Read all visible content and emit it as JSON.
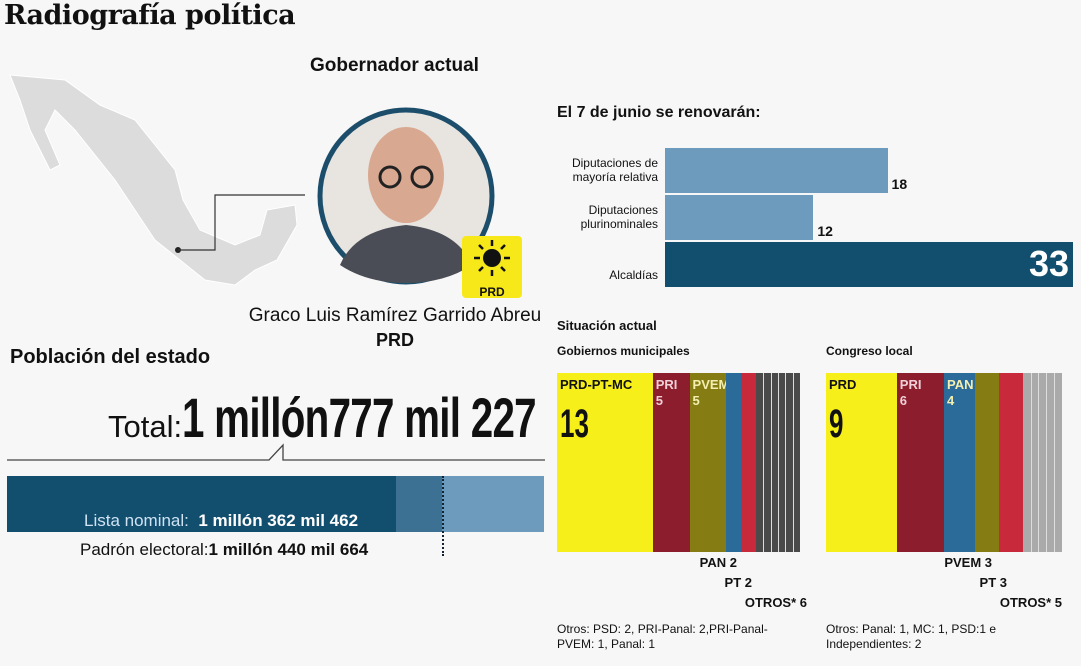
{
  "title": "Radiografía política",
  "governor": {
    "heading": "Gobernador actual",
    "name": "Graco Luis Ramírez Garrido Abreu",
    "party": "PRD",
    "logo_text": "PRD"
  },
  "population": {
    "heading": "Población del estado",
    "total_label": "Total:",
    "total_value": "1 millón777 mil 227",
    "lista_label": "Lista nominal:",
    "lista_value": "1 millón 362 mil 462",
    "padron_label": "Padrón electoral:",
    "padron_value": "1 millón 440 mil 664",
    "lista_count": 1362462,
    "padron_count": 1440664,
    "total_count": 1777227
  },
  "colors": {
    "dark": "#124e6e",
    "mid": "#3d7194",
    "light": "#6c9bbd",
    "yellow": "#f7ef1a",
    "pri": "#8c1d2c",
    "pvem": "#857d14",
    "pan": "#2b6b9a",
    "pt": "#c82a3b",
    "otros_mun": "#4a4a4a",
    "otros_cong": "#aaaaaa"
  },
  "chart_data": [
    {
      "type": "bar",
      "title": "El 7 de junio se renovarán:",
      "categories": [
        "Diputaciones de mayoría relativa",
        "Diputaciones plurinominales",
        "Alcaldías"
      ],
      "values": [
        18,
        12,
        33
      ],
      "value_labels": [
        "18",
        "12",
        "33"
      ]
    },
    {
      "type": "bar",
      "title": "Gobiernos municipales",
      "subtitle": "Situación actual",
      "stacked": true,
      "segments": [
        {
          "name": "PRD-PT-MC",
          "value": 13
        },
        {
          "name": "PRI",
          "value": 5
        },
        {
          "name": "PVEM",
          "value": 5
        },
        {
          "name": "PAN",
          "value": 2
        },
        {
          "name": "PT",
          "value": 2
        },
        {
          "name": "OTROS*",
          "value": 6
        }
      ],
      "labels": {
        "inside": [
          "PRD-PT-MC",
          "13",
          "PRI",
          "5",
          "PVEM",
          "5"
        ],
        "below": [
          "PAN 2",
          "PT 2",
          "OTROS* 6"
        ]
      },
      "footnote": "Otros: PSD: 2, PRI-Panal: 2,PRI-Panal-PVEM: 1, Panal: 1"
    },
    {
      "type": "bar",
      "title": "Congreso local",
      "stacked": true,
      "segments": [
        {
          "name": "PRD",
          "value": 9
        },
        {
          "name": "PRI",
          "value": 6
        },
        {
          "name": "PAN",
          "value": 4
        },
        {
          "name": "PVEM",
          "value": 3
        },
        {
          "name": "PT",
          "value": 3
        },
        {
          "name": "OTROS*",
          "value": 5
        }
      ],
      "labels": {
        "inside": [
          "PRD",
          "9",
          "PRI",
          "6",
          "PAN",
          "4"
        ],
        "below": [
          "PVEM 3",
          "PT 3",
          "OTROS* 5"
        ]
      },
      "footnote": "Otros: Panal: 1, MC: 1, PSD:1 e Independientes: 2"
    }
  ]
}
